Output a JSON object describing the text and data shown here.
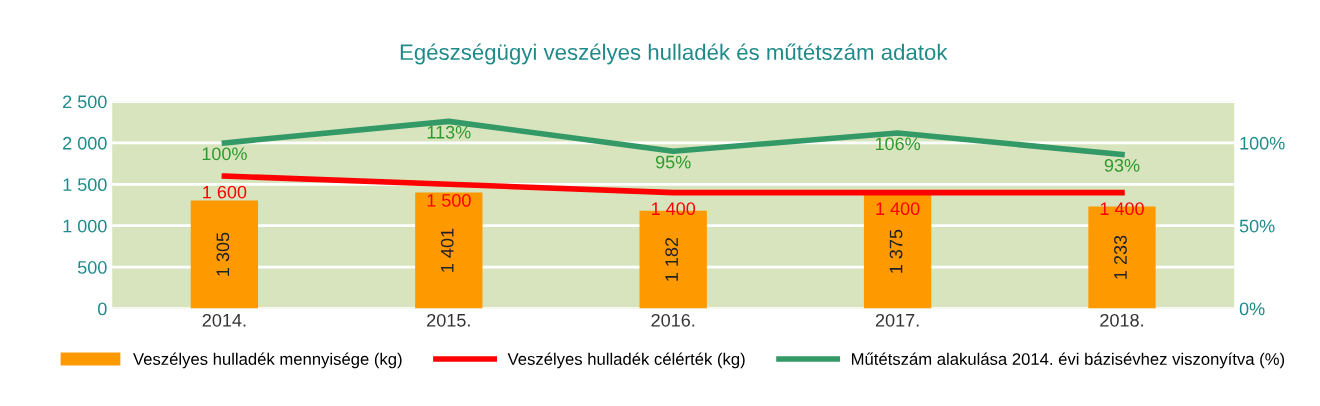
{
  "chart_data": {
    "type": "bar",
    "title": "Egészségügyi veszélyes hulladék és műtétszám adatok",
    "categories": [
      "2014.",
      "2015.",
      "2016.",
      "2017.",
      "2018."
    ],
    "series": [
      {
        "name": "Veszélyes hulladék mennyisége (kg)",
        "color": "#ff9900",
        "values": [
          1305,
          1401,
          1182,
          1375,
          1233
        ],
        "value_labels": [
          "1 305",
          "1 401",
          "1 182",
          "1 375",
          "1 233"
        ]
      },
      {
        "name": "Veszélyes hulladék célérték (kg)",
        "type": "line",
        "color": "#ff0000",
        "values": [
          1600,
          1500,
          1400,
          1400,
          1400
        ],
        "value_labels": [
          "1 600",
          "1 500",
          "1 400",
          "1 400",
          "1 400"
        ]
      },
      {
        "name": "Műtétszám alakulása 2014. évi bázisévhez viszonyítva (%)",
        "type": "line",
        "axis": "y2",
        "color": "#339966",
        "values": [
          100,
          113,
          95,
          106,
          93
        ],
        "value_labels": [
          "100%",
          "113%",
          "95%",
          "106%",
          "93%"
        ]
      }
    ],
    "ylim": [
      0,
      2500
    ],
    "yticks": [
      0,
      500,
      {
        "value": 1000,
        "label": "1 000"
      },
      {
        "value": 1500,
        "label": "1 500"
      },
      {
        "value": 2000,
        "label": "2 000"
      },
      {
        "value": 2500,
        "label": "2 500"
      }
    ],
    "y2lim": [
      0,
      125
    ],
    "y2ticks": [
      {
        "value": 0,
        "label": "0%"
      },
      {
        "value": 50,
        "label": "50%"
      },
      {
        "value": 100,
        "label": "100%"
      }
    ],
    "grid": "y",
    "legend": "bottom",
    "marker": "none",
    "line_style": "solid"
  }
}
